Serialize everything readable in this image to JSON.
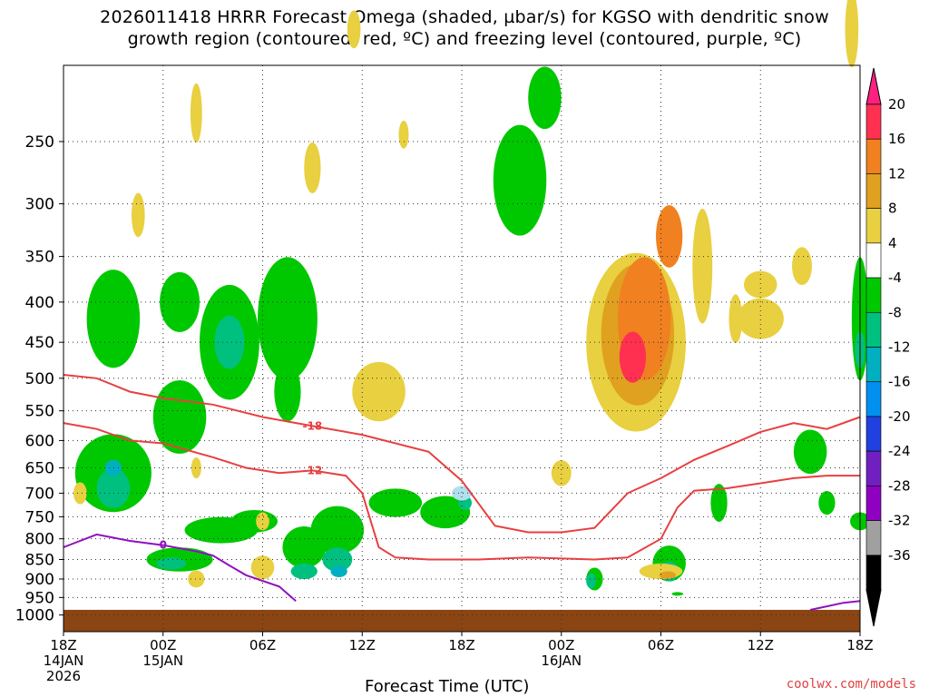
{
  "title_line1": "2026011418 HRRR Forecast Omega (shaded, µbar/s) for KGSO with dendritic snow",
  "title_line2": "growth region (contoured, red, ºC) and freezing level (contoured, purple, ºC)",
  "credit": "coolwx.com/models",
  "chart_data": {
    "type": "heatmap",
    "xlabel": "Forecast Time (UTC)",
    "ylabel": "",
    "x_ticks": [
      {
        "label": "18Z",
        "sub": [
          "14JAN",
          "2026"
        ]
      },
      {
        "label": "00Z",
        "sub": [
          "15JAN"
        ]
      },
      {
        "label": "06Z",
        "sub": []
      },
      {
        "label": "12Z",
        "sub": []
      },
      {
        "label": "18Z",
        "sub": []
      },
      {
        "label": "00Z",
        "sub": [
          "16JAN"
        ]
      },
      {
        "label": "06Z",
        "sub": []
      },
      {
        "label": "12Z",
        "sub": []
      },
      {
        "label": "18Z",
        "sub": []
      }
    ],
    "x_range_hours": [
      0,
      48
    ],
    "y_axis": "pressure (mb), log scale, inverted",
    "y_ticks": [
      250,
      300,
      350,
      400,
      450,
      500,
      550,
      600,
      650,
      700,
      750,
      800,
      850,
      900,
      950,
      1000
    ],
    "y_range": [
      200,
      1050
    ],
    "grid": true,
    "colorbar": {
      "labels": [
        "20",
        "16",
        "12",
        "8",
        "4",
        "-4",
        "-8",
        "-12",
        "-16",
        "-20",
        "-24",
        "-28",
        "-32",
        "-36"
      ],
      "colors": [
        "#ff3050",
        "#f08020",
        "#e0a020",
        "#e8d040",
        "#ffffff",
        "#00c800",
        "#00c080",
        "#00b0c0",
        "#0090f0",
        "#2040e0",
        "#7020c0",
        "#9000c0",
        "#a0a0a0",
        "#000000"
      ],
      "top_arrow_color": "#ff2080",
      "bottom_arrow_color": "#000000"
    },
    "contours": [
      {
        "label": "-18",
        "color": "#e84040",
        "points": [
          [
            0,
            495
          ],
          [
            2,
            500
          ],
          [
            4,
            520
          ],
          [
            6,
            530
          ],
          [
            9,
            540
          ],
          [
            12,
            560
          ],
          [
            15,
            575
          ],
          [
            18,
            590
          ],
          [
            22,
            620
          ],
          [
            24,
            675
          ],
          [
            26,
            770
          ],
          [
            28,
            785
          ],
          [
            30,
            785
          ],
          [
            32,
            775
          ],
          [
            34,
            700
          ],
          [
            36,
            670
          ],
          [
            38,
            635
          ],
          [
            40,
            610
          ],
          [
            42,
            585
          ],
          [
            44,
            570
          ],
          [
            46,
            580
          ],
          [
            48,
            560
          ]
        ]
      },
      {
        "label": "-12",
        "color": "#e84040",
        "points": [
          [
            0,
            570
          ],
          [
            2,
            580
          ],
          [
            4,
            600
          ],
          [
            6,
            605
          ],
          [
            9,
            630
          ],
          [
            11,
            650
          ],
          [
            13,
            660
          ],
          [
            15,
            655
          ],
          [
            17,
            665
          ],
          [
            18,
            700
          ],
          [
            19,
            820
          ],
          [
            20,
            845
          ],
          [
            22,
            850
          ],
          [
            25,
            850
          ],
          [
            28,
            845
          ],
          [
            32,
            850
          ],
          [
            34,
            845
          ],
          [
            36,
            800
          ],
          [
            37,
            730
          ],
          [
            38,
            695
          ],
          [
            40,
            690
          ],
          [
            42,
            680
          ],
          [
            44,
            670
          ],
          [
            46,
            665
          ],
          [
            48,
            665
          ]
        ]
      },
      {
        "label": "0",
        "color": "#9010c0",
        "points": [
          [
            0,
            820
          ],
          [
            2,
            790
          ],
          [
            4,
            805
          ],
          [
            6,
            815
          ],
          [
            8,
            830
          ],
          [
            9,
            840
          ],
          [
            10,
            865
          ],
          [
            11,
            890
          ],
          [
            13,
            920
          ],
          [
            14,
            960
          ]
        ]
      },
      {
        "label": "",
        "color": "#9010c0",
        "points": [
          [
            45,
            985
          ],
          [
            46,
            975
          ],
          [
            47,
            965
          ],
          [
            48,
            960
          ]
        ]
      }
    ],
    "ground_level_mb": 985,
    "shaded_regions_note": "Omega shading: green/teal upward motion (negative) over 18Z-14Z Jan 14-15 and near 00Z 16JAN; yellow-orange-red subsidence core (up to ~20 µbar/s) near 03Z 16JAN at 400-550 mb."
  }
}
